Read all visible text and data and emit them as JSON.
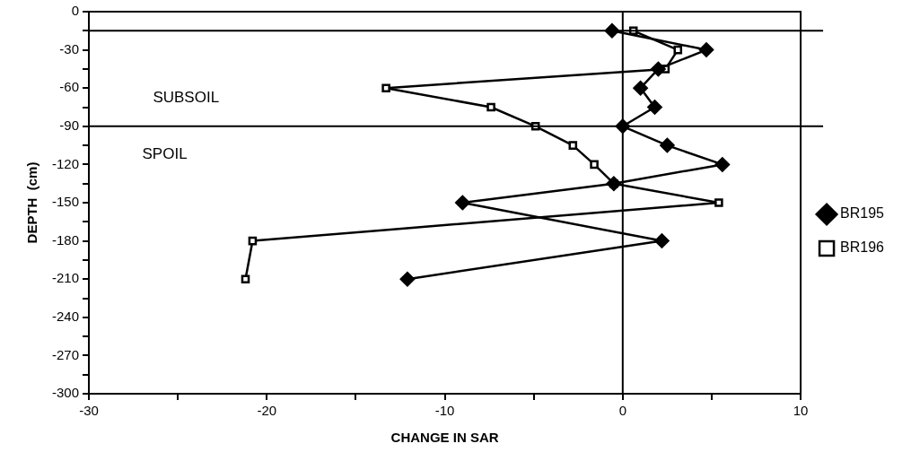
{
  "chart_data": {
    "type": "line",
    "xlabel": "CHANGE IN SAR",
    "ylabel": "DEPTH  (cm)",
    "series": [
      {
        "name": "BR195",
        "color": "#000000",
        "marker": "diamond",
        "x": [
          -0.6,
          4.7,
          2.0,
          1.0,
          1.8,
          0.0,
          2.5,
          5.6,
          -0.5,
          -9.0,
          2.2,
          -12.1
        ],
        "values": [
          -15,
          -30,
          -45,
          -60,
          -75,
          -90,
          -105,
          -120,
          -135,
          -150,
          -180,
          -210
        ]
      },
      {
        "name": "BR196",
        "color": "#000000",
        "marker": "square",
        "x": [
          0.6,
          3.1,
          2.4,
          -13.3,
          -7.4,
          -4.9,
          -2.8,
          -1.6,
          -0.5,
          5.4,
          -20.8,
          -21.2
        ],
        "values": [
          -15,
          -30,
          -45,
          -60,
          -75,
          -90,
          -105,
          -120,
          -135,
          -150,
          -180,
          -210
        ]
      }
    ],
    "xlim": [
      -30,
      10
    ],
    "xticks": [
      -30,
      {
        "value": -25,
        "label": null
      },
      -20,
      {
        "value": -15,
        "label": null
      },
      -10,
      {
        "value": -5,
        "label": null
      },
      0,
      {
        "value": 5,
        "label": null
      },
      10
    ],
    "ylim": [
      -300,
      0
    ],
    "yticks": [
      0,
      {
        "value": -15,
        "label": null
      },
      -30,
      {
        "value": -45,
        "label": null
      },
      -60,
      {
        "value": -75,
        "label": null
      },
      -90,
      {
        "value": -105,
        "label": null
      },
      -120,
      {
        "value": -135,
        "label": null
      },
      -150,
      {
        "value": -165,
        "label": null
      },
      -180,
      {
        "value": -195,
        "label": null
      },
      -210,
      {
        "value": -225,
        "label": null
      },
      -240,
      {
        "value": -255,
        "label": null
      },
      -270,
      {
        "value": -285,
        "label": null
      },
      -300
    ],
    "ref_lines": [
      {
        "axis": "y",
        "value": -15
      },
      {
        "axis": "y",
        "value": -90
      },
      {
        "axis": "x",
        "value": 0
      }
    ],
    "annotations": [
      "SUBSOIL",
      "SPOIL"
    ],
    "grid": false,
    "legend": "right",
    "line_style": "solid"
  }
}
